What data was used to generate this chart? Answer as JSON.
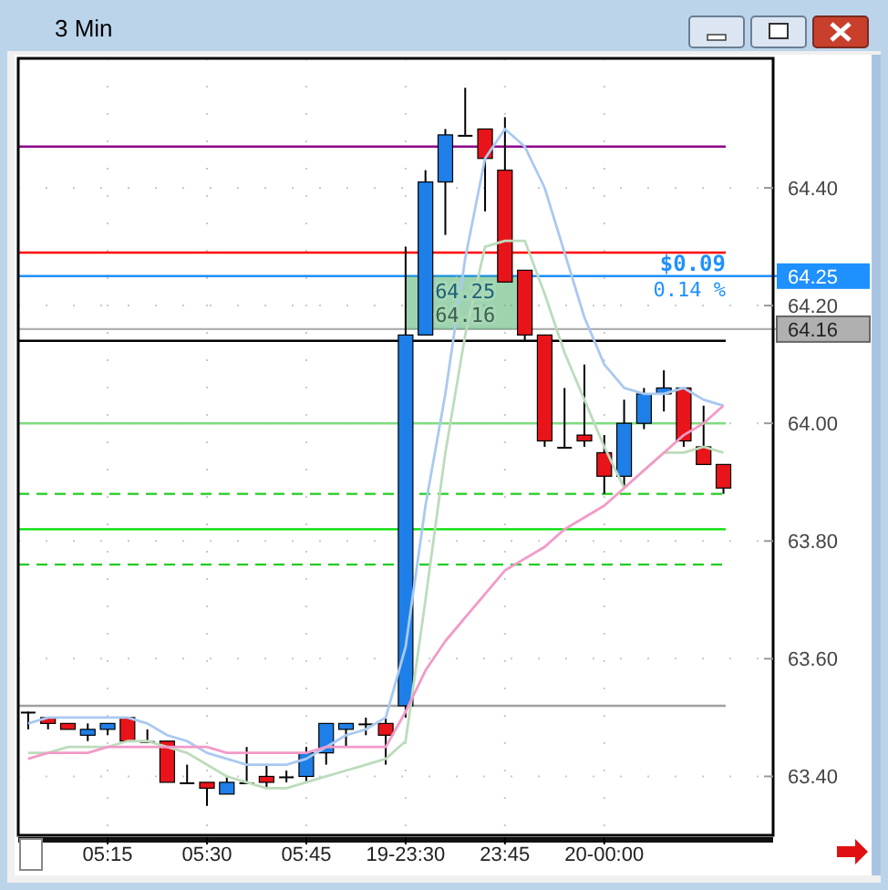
{
  "chart_data": {
    "type": "candlestick",
    "title": "3 Min",
    "categories": [
      null,
      null,
      null,
      null,
      "05:15",
      null,
      null,
      null,
      null,
      "05:30",
      null,
      null,
      null,
      null,
      "05:45",
      null,
      null,
      null,
      null,
      "19-23:30",
      null,
      null,
      null,
      null,
      "23:45",
      null,
      null,
      null,
      null,
      "20-00:00",
      null,
      null,
      null,
      null,
      null,
      null,
      null,
      null
    ],
    "ohlc": [
      [
        63.51,
        63.51,
        63.48,
        63.51
      ],
      [
        63.5,
        63.5,
        63.48,
        63.49
      ],
      [
        63.49,
        63.49,
        63.48,
        63.48
      ],
      [
        63.47,
        63.49,
        63.46,
        63.48
      ],
      [
        63.48,
        63.49,
        63.47,
        63.49
      ],
      [
        63.5,
        63.5,
        63.46,
        63.46
      ],
      [
        63.46,
        63.48,
        63.46,
        63.46
      ],
      [
        63.46,
        63.46,
        63.39,
        63.39
      ],
      [
        63.39,
        63.42,
        63.39,
        63.39
      ],
      [
        63.39,
        63.39,
        63.35,
        63.38
      ],
      [
        63.37,
        63.4,
        63.37,
        63.39
      ],
      [
        63.39,
        63.45,
        63.39,
        63.39
      ],
      [
        63.4,
        63.42,
        63.38,
        63.39
      ],
      [
        63.4,
        63.41,
        63.39,
        63.4
      ],
      [
        63.4,
        63.45,
        63.39,
        63.44
      ],
      [
        63.44,
        63.49,
        63.42,
        63.49
      ],
      [
        63.48,
        63.49,
        63.45,
        63.49
      ],
      [
        63.49,
        63.5,
        63.47,
        63.49
      ],
      [
        63.49,
        63.5,
        63.42,
        63.47
      ],
      [
        63.52,
        64.3,
        63.5,
        64.15
      ],
      [
        64.15,
        64.43,
        64.15,
        64.41
      ],
      [
        64.41,
        64.5,
        64.32,
        64.49
      ],
      [
        64.49,
        64.57,
        64.49,
        64.49
      ],
      [
        64.5,
        64.5,
        64.36,
        64.45
      ],
      [
        64.43,
        64.52,
        64.24,
        64.24
      ],
      [
        64.26,
        64.26,
        64.14,
        64.15
      ],
      [
        64.15,
        64.15,
        63.96,
        63.97
      ],
      [
        63.96,
        64.06,
        63.96,
        63.96
      ],
      [
        63.98,
        64.1,
        63.96,
        63.97
      ],
      [
        63.95,
        63.98,
        63.88,
        63.91
      ],
      [
        63.91,
        64.04,
        63.89,
        64.0
      ],
      [
        64.0,
        64.06,
        63.99,
        64.05
      ],
      [
        64.05,
        64.09,
        64.02,
        64.06
      ],
      [
        64.06,
        64.06,
        63.96,
        63.97
      ],
      [
        63.96,
        64.03,
        63.93,
        63.93
      ],
      [
        63.93,
        63.93,
        63.88,
        63.89
      ],
      null,
      null
    ],
    "colors": [
      "#000000",
      "#e8141a",
      "#e8141a",
      "#1e7fe8",
      "#1e7fe8",
      "#e8141a",
      "#000000",
      "#e8141a",
      "#000000",
      "#e8141a",
      "#1e7fe8",
      "#000000",
      "#e8141a",
      "#000000",
      "#1e7fe8",
      "#1e7fe8",
      "#1e7fe8",
      "#000000",
      "#e8141a",
      "#1e7fe8",
      "#1e7fe8",
      "#1e7fe8",
      "#000000",
      "#e8141a",
      "#e8141a",
      "#e8141a",
      "#e8141a",
      "#000000",
      "#e8141a",
      "#e8141a",
      "#1e7fe8",
      "#1e7fe8",
      "#1e7fe8",
      "#e8141a",
      "#e8141a",
      "#e8141a",
      null,
      null
    ],
    "series": [
      {
        "type": "line",
        "color": "#a9c9f0",
        "values": [
          63.49,
          63.5,
          63.5,
          63.5,
          63.5,
          63.5,
          63.49,
          63.47,
          63.46,
          63.44,
          63.43,
          63.42,
          63.42,
          63.42,
          63.43,
          63.45,
          63.47,
          63.48,
          63.5,
          63.62,
          63.86,
          64.05,
          64.28,
          64.45,
          64.5,
          64.47,
          64.4,
          64.29,
          64.18,
          64.1,
          64.06,
          64.05,
          64.05,
          64.06,
          64.04,
          64.03,
          null,
          null
        ]
      },
      {
        "type": "line",
        "color": "#bcdcbc",
        "values": [
          63.44,
          63.44,
          63.45,
          63.45,
          63.45,
          63.46,
          63.46,
          63.45,
          63.44,
          63.42,
          63.4,
          63.39,
          63.38,
          63.38,
          63.39,
          63.4,
          63.41,
          63.42,
          63.43,
          63.46,
          63.7,
          63.95,
          64.15,
          64.3,
          64.31,
          64.31,
          64.22,
          64.12,
          64.04,
          63.96,
          63.89,
          63.92,
          63.95,
          63.95,
          63.96,
          63.95,
          null,
          null
        ]
      },
      {
        "type": "line",
        "color": "#f29ac8",
        "values": [
          63.43,
          63.44,
          63.44,
          63.44,
          63.45,
          63.45,
          63.45,
          63.45,
          63.45,
          63.45,
          63.44,
          63.44,
          63.44,
          63.44,
          63.44,
          63.45,
          63.45,
          63.45,
          63.45,
          63.51,
          63.58,
          63.63,
          63.67,
          63.71,
          63.75,
          63.77,
          63.79,
          63.82,
          63.84,
          63.86,
          63.89,
          63.92,
          63.95,
          63.98,
          64.0,
          64.03,
          null,
          null
        ]
      }
    ],
    "ylim": [
      63.3,
      64.62
    ],
    "yticks": [
      {
        "value": 63.4,
        "label": "63.40"
      },
      {
        "value": 63.6,
        "label": "63.60"
      },
      {
        "value": 63.8,
        "label": "63.80"
      },
      {
        "value": 64.0,
        "label": "64.00"
      },
      {
        "value": 64.2,
        "label": "64.20"
      },
      {
        "value": 64.4,
        "label": "64.40"
      }
    ],
    "grid": true,
    "ref_lines": [
      {
        "axis": "y",
        "value": 64.47,
        "color": "#8b008b"
      },
      {
        "axis": "y",
        "value": 64.29,
        "color": "#ff0000"
      },
      {
        "axis": "y",
        "value": 64.25,
        "label": "64.25",
        "color": "#1e90ff"
      },
      {
        "axis": "y",
        "value": 64.16,
        "label": "64.16",
        "color": "#b0b0b0"
      },
      {
        "axis": "y",
        "value": 64.14,
        "color": "#000000"
      },
      {
        "axis": "y",
        "value": 64.0,
        "color": "#7fdc7f"
      },
      {
        "axis": "y",
        "value": 63.88,
        "color": "#22cc22",
        "line_style": "dashed"
      },
      {
        "axis": "y",
        "value": 63.82,
        "color": "#00dd00"
      },
      {
        "axis": "y",
        "value": 63.76,
        "color": "#22cc22",
        "line_style": "dashed"
      },
      {
        "axis": "y",
        "value": 63.52,
        "color": "#a0a0a0"
      }
    ],
    "annotations": [
      {
        "text": "64.25",
        "x": "19-23:30",
        "y": 64.25
      },
      {
        "text": "64.16",
        "x": "19-23:30",
        "y": 64.16
      },
      {
        "text": "$0.09",
        "y": 64.25
      },
      {
        "text": "0.14 %",
        "y": 64.25
      }
    ]
  }
}
